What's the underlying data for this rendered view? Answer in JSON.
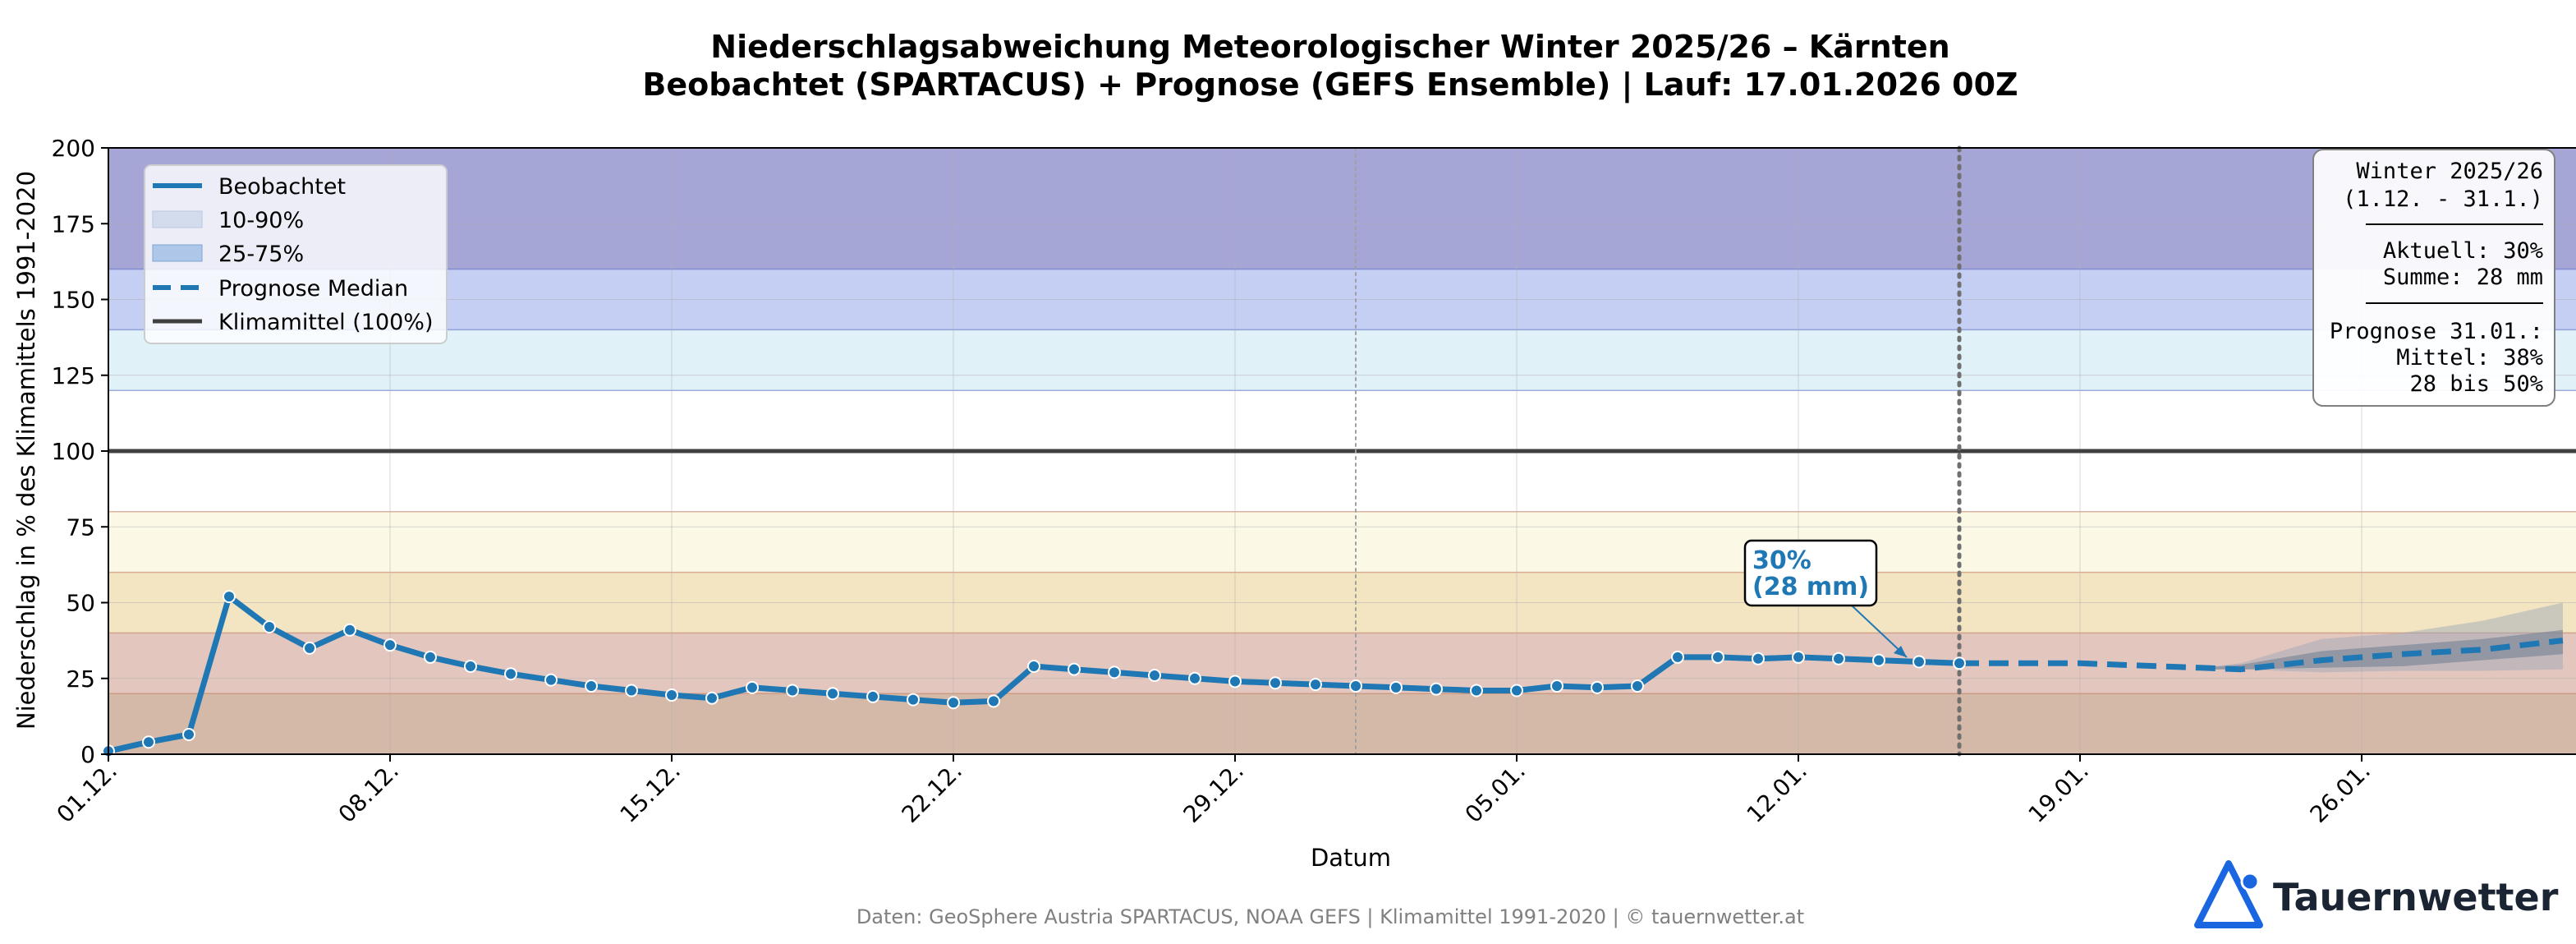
{
  "chart_data": {
    "type": "line",
    "title": "Niederschlagsabweichung Meteorologischer Winter 2025/26 – Kärnten",
    "subtitle": "Beobachtet (SPARTACUS) + Prognose (GEFS Ensemble) | Lauf: 17.01.2026 00Z",
    "xlabel": "Datum",
    "ylabel": "Niederschlag in % des Klimamittels 1991-2020",
    "ylim": [
      0,
      200
    ],
    "yticks": [
      0,
      25,
      50,
      75,
      100,
      125,
      150,
      175,
      200
    ],
    "xlim": [
      "2025-12-01",
      "2026-02-01"
    ],
    "xtick_labels": [
      "01.12.",
      "08.12.",
      "15.12.",
      "22.12.",
      "29.12.",
      "05.01.",
      "12.01.",
      "19.01.",
      "26.01."
    ],
    "x_unit": "date",
    "grid": true,
    "legend_position": "top-left",
    "legend": [
      "Beobachtet",
      "10-90%",
      "25-75%",
      "Prognose Median",
      "Klimamittel (100%)"
    ],
    "observed": {
      "name": "Beobachtet",
      "x": [
        "2025-12-01",
        "2025-12-02",
        "2025-12-03",
        "2025-12-04",
        "2025-12-05",
        "2025-12-06",
        "2025-12-07",
        "2025-12-08",
        "2025-12-09",
        "2025-12-10",
        "2025-12-11",
        "2025-12-12",
        "2025-12-13",
        "2025-12-14",
        "2025-12-15",
        "2025-12-16",
        "2025-12-17",
        "2025-12-18",
        "2025-12-19",
        "2025-12-20",
        "2025-12-21",
        "2025-12-22",
        "2025-12-23",
        "2025-12-24",
        "2025-12-25",
        "2025-12-26",
        "2025-12-27",
        "2025-12-28",
        "2025-12-29",
        "2025-12-30",
        "2025-12-31",
        "2026-01-01",
        "2026-01-02",
        "2026-01-03",
        "2026-01-04",
        "2026-01-05",
        "2026-01-06",
        "2026-01-07",
        "2026-01-08",
        "2026-01-09",
        "2026-01-10",
        "2026-01-11",
        "2026-01-12",
        "2026-01-13",
        "2026-01-14",
        "2026-01-15",
        "2026-01-16"
      ],
      "values": [
        1,
        4,
        6.5,
        52,
        42,
        35,
        41,
        36,
        32,
        29,
        26.5,
        24.5,
        22.5,
        21,
        19.5,
        18.5,
        22,
        21,
        20,
        19,
        18,
        17,
        17.5,
        29,
        28,
        27,
        26,
        25,
        24,
        23.5,
        23,
        22.5,
        22,
        21.5,
        21,
        21,
        22.5,
        22,
        22.5,
        32,
        32,
        31.5,
        32,
        31.5,
        31,
        30.5,
        30
      ]
    },
    "forecast_median": {
      "name": "Prognose Median",
      "x": [
        "2026-01-16",
        "2026-01-19",
        "2026-01-21",
        "2026-01-22",
        "2026-01-23",
        "2026-01-25",
        "2026-01-27",
        "2026-01-29",
        "2026-01-31"
      ],
      "values": [
        30,
        30,
        29,
        28.5,
        28,
        31,
        33,
        34.5,
        37.5
      ]
    },
    "band_10_90": {
      "name": "10-90%",
      "x": [
        "2026-01-22",
        "2026-01-23",
        "2026-01-25",
        "2026-01-27",
        "2026-01-29",
        "2026-01-31"
      ],
      "low": [
        28,
        28,
        27,
        27.5,
        27.5,
        28
      ],
      "high": [
        28.5,
        30,
        38,
        40,
        44,
        50
      ]
    },
    "band_25_75": {
      "name": "25-75%",
      "x": [
        "2026-01-22",
        "2026-01-23",
        "2026-01-25",
        "2026-01-27",
        "2026-01-29",
        "2026-01-31"
      ],
      "low": [
        28,
        28,
        28.5,
        29,
        31,
        33
      ],
      "high": [
        28.5,
        29.5,
        34,
        36,
        38,
        41
      ]
    },
    "climate_mean": {
      "name": "Klimamittel (100%)",
      "value": 100
    },
    "background_zones": [
      {
        "from": 0,
        "to": 20,
        "color": "#d4b8a8"
      },
      {
        "from": 20,
        "to": 40,
        "color": "#e3c6be"
      },
      {
        "from": 40,
        "to": 60,
        "color": "#f3e4c2"
      },
      {
        "from": 60,
        "to": 80,
        "color": "#fbf8e6"
      },
      {
        "from": 80,
        "to": 120,
        "color": "#ffffff"
      },
      {
        "from": 120,
        "to": 140,
        "color": "#e0f1f7"
      },
      {
        "from": 140,
        "to": 160,
        "color": "#c4cff3"
      },
      {
        "from": 160,
        "to": 200,
        "color": "#a6a6d6"
      }
    ],
    "vertical_markers": [
      {
        "date": "2026-01-01",
        "style": "thin-dotted"
      },
      {
        "date": "2026-01-16",
        "style": "bold-dotted"
      }
    ],
    "annotation": {
      "line1": "30%",
      "line2": "(28 mm)",
      "target_date": "2026-01-16",
      "target_value": 30
    },
    "info_box": {
      "lines_a": [
        "Winter 2025/26",
        "(1.12. - 31.1.)"
      ],
      "lines_b": [
        "Aktuell: 30%",
        "Summe: 28 mm"
      ],
      "lines_c": [
        "Prognose 31.01.:",
        "Mittel: 38%",
        "28 bis 50%"
      ]
    },
    "colors": {
      "observed": "#1f77b4",
      "band_10_90": "#d3dced",
      "band_25_75": "#aec7e8",
      "climate_line": "#404040"
    }
  },
  "footer": "Daten: GeoSphere Austria SPARTACUS, NOAA GEFS | Klimamittel 1991-2020 | © tauernwetter.at",
  "brand": {
    "name": "Tauernwetter",
    "color": "#1a66e0"
  }
}
